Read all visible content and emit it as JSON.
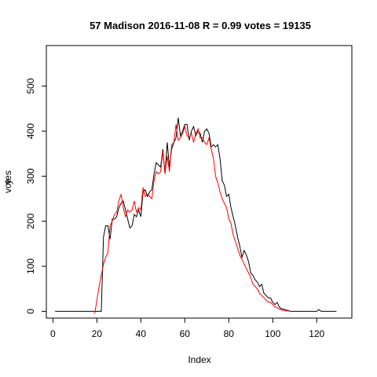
{
  "chart_data": {
    "type": "line",
    "title": "57 Madison 2016-11-08 R = 0.99 votes = 19135",
    "xlabel": "Index",
    "ylabel_overlap": [
      "y",
      "votes"
    ],
    "xlim": [
      -3,
      136
    ],
    "ylim": [
      -15,
      590
    ],
    "x_ticks": [
      0,
      20,
      40,
      60,
      80,
      100,
      120
    ],
    "y_ticks": [
      0,
      100,
      200,
      300,
      400,
      500
    ],
    "grid": false,
    "legend": "none",
    "series": [
      {
        "color": "#000000",
        "x": [
          1,
          2,
          3,
          4,
          5,
          6,
          7,
          8,
          9,
          10,
          11,
          12,
          13,
          14,
          15,
          16,
          17,
          18,
          19,
          20,
          21,
          22,
          23,
          24,
          25,
          26,
          27,
          28,
          29,
          30,
          31,
          32,
          33,
          34,
          35,
          36,
          37,
          38,
          39,
          40,
          41,
          42,
          43,
          44,
          45,
          46,
          47,
          48,
          49,
          50,
          51,
          52,
          53,
          54,
          55,
          56,
          57,
          58,
          59,
          60,
          61,
          62,
          63,
          64,
          65,
          66,
          67,
          68,
          69,
          70,
          71,
          72,
          73,
          74,
          75,
          76,
          77,
          78,
          79,
          80,
          81,
          82,
          83,
          84,
          85,
          86,
          87,
          88,
          89,
          90,
          91,
          92,
          93,
          94,
          95,
          96,
          97,
          98,
          99,
          100,
          101,
          102,
          103,
          104,
          105,
          106,
          107,
          108,
          109,
          110,
          111,
          112,
          113,
          114,
          115,
          116,
          117,
          118,
          119,
          120,
          121,
          122,
          123,
          124,
          125,
          126,
          127,
          128,
          129
        ],
        "y": [
          0,
          0,
          0,
          0,
          0,
          0,
          0,
          0,
          0,
          0,
          0,
          0,
          0,
          0,
          0,
          0,
          0,
          0,
          0,
          0,
          0,
          0,
          165,
          190,
          190,
          160,
          205,
          205,
          210,
          230,
          240,
          245,
          225,
          205,
          185,
          190,
          215,
          210,
          225,
          210,
          265,
          270,
          255,
          265,
          270,
          305,
          330,
          325,
          320,
          360,
          305,
          375,
          320,
          360,
          375,
          385,
          430,
          390,
          400,
          415,
          415,
          380,
          400,
          410,
          390,
          400,
          395,
          375,
          400,
          405,
          395,
          365,
          370,
          365,
          370,
          340,
          290,
          280,
          255,
          260,
          230,
          210,
          190,
          165,
          145,
          120,
          135,
          125,
          110,
          85,
          80,
          70,
          65,
          55,
          60,
          40,
          35,
          30,
          30,
          20,
          15,
          20,
          10,
          5,
          5,
          3,
          2,
          0,
          0,
          0,
          0,
          0,
          0,
          0,
          0,
          0,
          0,
          0,
          0,
          0,
          4,
          0,
          0,
          0,
          0,
          0,
          0,
          0,
          0
        ]
      },
      {
        "color": "#ff0000",
        "x": [
          19,
          20,
          21,
          22,
          23,
          24,
          25,
          26,
          27,
          28,
          29,
          30,
          31,
          32,
          33,
          34,
          35,
          36,
          37,
          38,
          39,
          40,
          41,
          42,
          43,
          44,
          45,
          46,
          47,
          48,
          49,
          50,
          51,
          52,
          53,
          54,
          55,
          56,
          57,
          58,
          59,
          60,
          61,
          62,
          63,
          64,
          65,
          66,
          67,
          68,
          69,
          70,
          71,
          72,
          73,
          74,
          75,
          76,
          77,
          78,
          79,
          80,
          81,
          82,
          83,
          84,
          85,
          86,
          87,
          88,
          89,
          90,
          91,
          92,
          93,
          94,
          95,
          96,
          97,
          98,
          99,
          100,
          101,
          102,
          103,
          104,
          105,
          106,
          107,
          108
        ],
        "y": [
          -5,
          25,
          55,
          80,
          105,
          120,
          130,
          190,
          200,
          215,
          220,
          245,
          260,
          230,
          210,
          225,
          220,
          225,
          245,
          220,
          230,
          225,
          275,
          255,
          260,
          255,
          250,
          290,
          310,
          305,
          310,
          355,
          305,
          345,
          310,
          370,
          375,
          415,
          380,
          385,
          395,
          410,
          390,
          385,
          395,
          375,
          395,
          405,
          385,
          385,
          375,
          370,
          385,
          360,
          340,
          300,
          285,
          265,
          250,
          240,
          230,
          205,
          195,
          170,
          155,
          140,
          125,
          115,
          105,
          95,
          85,
          75,
          60,
          55,
          50,
          40,
          35,
          30,
          25,
          20,
          20,
          15,
          10,
          8,
          5,
          3,
          2,
          1,
          1,
          0
        ]
      }
    ]
  }
}
